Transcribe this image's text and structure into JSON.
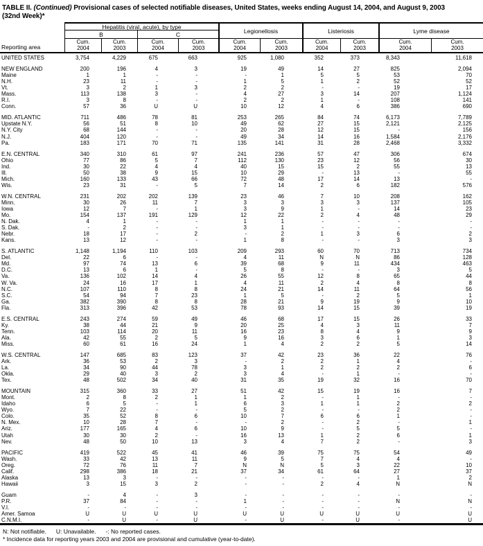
{
  "title": {
    "part1": "TABLE II.",
    "continued": "(Continued)",
    "part2": "Provisional cases of selected notifiable diseases, United States, weeks ending August 14, 2004, and August 9, 2003",
    "line2": "(32nd Week)*"
  },
  "table": {
    "header": {
      "reporting_area": "Reporting area",
      "hepatitis_group": "Hepatitis (viral, acute), by type",
      "hep_b": "B",
      "hep_c": "C",
      "legionellosis": "Legionellosis",
      "listeriosis": "Listeriosis",
      "lyme_disease": "Lyme disease"
    },
    "columns": [
      {
        "id": "hep-b-cum-2004",
        "line1": "Cum.",
        "line2": "2004"
      },
      {
        "id": "hep-b-cum-2003",
        "line1": "Cum.",
        "line2": "2003"
      },
      {
        "id": "hep-c-cum-2004",
        "line1": "Cum.",
        "line2": "2004"
      },
      {
        "id": "hep-c-cum-2003",
        "line1": "Cum.",
        "line2": "2003"
      },
      {
        "id": "legionellosis-cum-2004",
        "line1": "Cum.",
        "line2": "2004"
      },
      {
        "id": "legionellosis-cum-2003",
        "line1": "Cum.",
        "line2": "2003"
      },
      {
        "id": "listeriosis-cum-2004",
        "line1": "Cum.",
        "line2": "2004"
      },
      {
        "id": "listeriosis-cum-2003",
        "line1": "Cum.",
        "line2": "2003"
      },
      {
        "id": "lyme-cum-2004",
        "line1": "Cum.",
        "line2": "2004"
      },
      {
        "id": "lyme-cum-2003",
        "line1": "Cum.",
        "line2": "2003"
      }
    ],
    "groups": [
      {
        "rows": [
          [
            "UNITED STATES",
            "3,754",
            "4,229",
            "675",
            "663",
            "925",
            "1,080",
            "352",
            "373",
            "8,343",
            "11,618"
          ]
        ]
      },
      {
        "rows": [
          [
            "NEW ENGLAND",
            "200",
            "196",
            "4",
            "3",
            "19",
            "49",
            "14",
            "27",
            "825",
            "2,094"
          ],
          [
            "Maine",
            "1",
            "1",
            "-",
            "-",
            "-",
            "1",
            "5",
            "5",
            "53",
            "70"
          ],
          [
            "N.H.",
            "23",
            "11",
            "-",
            "-",
            "1",
            "5",
            "1",
            "2",
            "52",
            "52"
          ],
          [
            "Vt.",
            "3",
            "2",
            "1",
            "3",
            "2",
            "2",
            "-",
            "-",
            "19",
            "17"
          ],
          [
            "Mass.",
            "113",
            "138",
            "3",
            "-",
            "4",
            "27",
            "3",
            "14",
            "207",
            "1,124"
          ],
          [
            "R.I.",
            "3",
            "8",
            "-",
            "-",
            "2",
            "2",
            "1",
            "-",
            "108",
            "141"
          ],
          [
            "Conn.",
            "57",
            "36",
            "U",
            "U",
            "10",
            "12",
            "4",
            "6",
            "386",
            "690"
          ]
        ]
      },
      {
        "rows": [
          [
            "MID. ATLANTIC",
            "711",
            "486",
            "78",
            "81",
            "253",
            "265",
            "84",
            "74",
            "6,173",
            "7,789"
          ],
          [
            "Upstate N.Y.",
            "56",
            "51",
            "8",
            "10",
            "49",
            "62",
            "27",
            "15",
            "2,121",
            "2,125"
          ],
          [
            "N.Y. City",
            "68",
            "144",
            "-",
            "-",
            "20",
            "28",
            "12",
            "15",
            "-",
            "156"
          ],
          [
            "N.J.",
            "404",
            "120",
            "-",
            "-",
            "49",
            "34",
            "14",
            "16",
            "1,584",
            "2,176"
          ],
          [
            "Pa.",
            "183",
            "171",
            "70",
            "71",
            "135",
            "141",
            "31",
            "28",
            "2,468",
            "3,332"
          ]
        ]
      },
      {
        "rows": [
          [
            "E.N. CENTRAL",
            "340",
            "310",
            "61",
            "97",
            "241",
            "236",
            "57",
            "47",
            "306",
            "674"
          ],
          [
            "Ohio",
            "77",
            "86",
            "5",
            "7",
            "112",
            "130",
            "23",
            "12",
            "56",
            "30"
          ],
          [
            "Ind.",
            "30",
            "22",
            "4",
            "4",
            "40",
            "15",
            "15",
            "2",
            "55",
            "13"
          ],
          [
            "Ill.",
            "50",
            "38",
            "9",
            "15",
            "10",
            "29",
            "-",
            "13",
            "-",
            "55"
          ],
          [
            "Mich.",
            "160",
            "133",
            "43",
            "66",
            "72",
            "48",
            "17",
            "14",
            "13",
            "-"
          ],
          [
            "Wis.",
            "23",
            "31",
            "-",
            "5",
            "7",
            "14",
            "2",
            "6",
            "182",
            "576"
          ]
        ]
      },
      {
        "rows": [
          [
            "W.N. CENTRAL",
            "231",
            "202",
            "202",
            "139",
            "23",
            "46",
            "7",
            "10",
            "208",
            "162"
          ],
          [
            "Minn.",
            "30",
            "26",
            "11",
            "7",
            "3",
            "3",
            "3",
            "3",
            "137",
            "105"
          ],
          [
            "Iowa",
            "12",
            "7",
            "-",
            "1",
            "3",
            "9",
            "1",
            "-",
            "14",
            "23"
          ],
          [
            "Mo.",
            "154",
            "137",
            "191",
            "129",
            "12",
            "22",
            "2",
            "4",
            "48",
            "29"
          ],
          [
            "N. Dak.",
            "4",
            "1",
            "-",
            "-",
            "1",
            "1",
            "-",
            "-",
            "-",
            "-"
          ],
          [
            "S. Dak.",
            "-",
            "2",
            "-",
            "-",
            "3",
            "1",
            "-",
            "-",
            "-",
            "-"
          ],
          [
            "Nebr.",
            "18",
            "17",
            "-",
            "2",
            "-",
            "2",
            "1",
            "3",
            "6",
            "2"
          ],
          [
            "Kans.",
            "13",
            "12",
            "-",
            "-",
            "1",
            "8",
            "-",
            "-",
            "3",
            "3"
          ]
        ]
      },
      {
        "rows": [
          [
            "S. ATLANTIC",
            "1,148",
            "1,194",
            "110",
            "103",
            "209",
            "293",
            "60",
            "70",
            "713",
            "734"
          ],
          [
            "Del.",
            "22",
            "6",
            "-",
            "-",
            "4",
            "11",
            "N",
            "N",
            "86",
            "128"
          ],
          [
            "Md.",
            "97",
            "74",
            "13",
            "6",
            "39",
            "68",
            "9",
            "11",
            "434",
            "463"
          ],
          [
            "D.C.",
            "13",
            "6",
            "1",
            "-",
            "5",
            "8",
            "-",
            "-",
            "3",
            "5"
          ],
          [
            "Va.",
            "136",
            "102",
            "14",
            "4",
            "26",
            "55",
            "12",
            "8",
            "65",
            "44"
          ],
          [
            "W. Va.",
            "24",
            "16",
            "17",
            "1",
            "4",
            "11",
            "2",
            "4",
            "8",
            "8"
          ],
          [
            "N.C.",
            "107",
            "110",
            "8",
            "8",
            "24",
            "21",
            "14",
            "11",
            "64",
            "56"
          ],
          [
            "S.C.",
            "54",
            "94",
            "7",
            "23",
            "1",
            "5",
            "-",
            "2",
            "5",
            "1"
          ],
          [
            "Ga.",
            "382",
            "390",
            "8",
            "8",
            "28",
            "21",
            "9",
            "19",
            "9",
            "10"
          ],
          [
            "Fla.",
            "313",
            "396",
            "42",
            "53",
            "78",
            "93",
            "14",
            "15",
            "39",
            "19"
          ]
        ]
      },
      {
        "rows": [
          [
            "E.S. CENTRAL",
            "243",
            "274",
            "59",
            "49",
            "46",
            "68",
            "17",
            "15",
            "26",
            "33"
          ],
          [
            "Ky.",
            "38",
            "44",
            "21",
            "9",
            "20",
            "25",
            "4",
            "3",
            "11",
            "7"
          ],
          [
            "Tenn.",
            "103",
            "114",
            "20",
            "11",
            "16",
            "23",
            "8",
            "4",
            "9",
            "9"
          ],
          [
            "Ala.",
            "42",
            "55",
            "2",
            "5",
            "9",
            "16",
            "3",
            "6",
            "1",
            "3"
          ],
          [
            "Miss.",
            "60",
            "61",
            "16",
            "24",
            "1",
            "4",
            "2",
            "2",
            "5",
            "14"
          ]
        ]
      },
      {
        "rows": [
          [
            "W.S. CENTRAL",
            "147",
            "685",
            "83",
            "123",
            "37",
            "42",
            "23",
            "36",
            "22",
            "76"
          ],
          [
            "Ark.",
            "36",
            "53",
            "2",
            "3",
            "-",
            "2",
            "2",
            "1",
            "4",
            "-"
          ],
          [
            "La.",
            "34",
            "90",
            "44",
            "78",
            "3",
            "1",
            "2",
            "2",
            "2",
            "6"
          ],
          [
            "Okla.",
            "29",
            "40",
            "3",
            "2",
            "3",
            "4",
            "-",
            "1",
            "-",
            "-"
          ],
          [
            "Tex.",
            "48",
            "502",
            "34",
            "40",
            "31",
            "35",
            "19",
            "32",
            "16",
            "70"
          ]
        ]
      },
      {
        "rows": [
          [
            "MOUNTAIN",
            "315",
            "360",
            "33",
            "27",
            "51",
            "42",
            "15",
            "19",
            "16",
            "7"
          ],
          [
            "Mont.",
            "2",
            "8",
            "2",
            "1",
            "1",
            "2",
            "-",
            "1",
            "-",
            "-"
          ],
          [
            "Idaho",
            "6",
            "5",
            "-",
            "1",
            "6",
            "3",
            "1",
            "1",
            "2",
            "2"
          ],
          [
            "Wyo.",
            "7",
            "22",
            "-",
            "-",
            "5",
            "2",
            "-",
            "-",
            "2",
            "-"
          ],
          [
            "Colo.",
            "35",
            "52",
            "8",
            "6",
            "10",
            "7",
            "6",
            "6",
            "1",
            "-"
          ],
          [
            "N. Mex.",
            "10",
            "28",
            "7",
            "-",
            "-",
            "2",
            "-",
            "2",
            "-",
            "1"
          ],
          [
            "Ariz.",
            "177",
            "165",
            "4",
            "6",
            "10",
            "9",
            "-",
            "5",
            "5",
            "-"
          ],
          [
            "Utah",
            "30",
            "30",
            "2",
            "-",
            "16",
            "13",
            "1",
            "2",
            "6",
            "1"
          ],
          [
            "Nev.",
            "48",
            "50",
            "10",
            "13",
            "3",
            "4",
            "7",
            "2",
            "-",
            "3"
          ]
        ]
      },
      {
        "rows": [
          [
            "PACIFIC",
            "419",
            "522",
            "45",
            "41",
            "46",
            "39",
            "75",
            "75",
            "54",
            "49"
          ],
          [
            "Wash.",
            "33",
            "42",
            "13",
            "11",
            "9",
            "5",
            "7",
            "4",
            "4",
            "-"
          ],
          [
            "Oreg.",
            "72",
            "76",
            "11",
            "7",
            "N",
            "N",
            "5",
            "3",
            "22",
            "10"
          ],
          [
            "Calif.",
            "298",
            "386",
            "18",
            "21",
            "37",
            "34",
            "61",
            "64",
            "27",
            "37"
          ],
          [
            "Alaska",
            "13",
            "3",
            "-",
            "-",
            "-",
            "-",
            "-",
            "-",
            "1",
            "2"
          ],
          [
            "Hawaii",
            "3",
            "15",
            "3",
            "2",
            "-",
            "-",
            "2",
            "4",
            "N",
            "N"
          ]
        ]
      },
      {
        "rows": [
          [
            "Guam",
            "-",
            "4",
            "-",
            "3",
            "-",
            "-",
            "-",
            "-",
            "-",
            "-"
          ],
          [
            "P.R.",
            "37",
            "84",
            "-",
            "-",
            "1",
            "-",
            "-",
            "-",
            "N",
            "N"
          ],
          [
            "V.I.",
            "-",
            "-",
            "-",
            "-",
            "-",
            "-",
            "-",
            "-",
            "-",
            "-"
          ],
          [
            "Amer. Samoa",
            "U",
            "U",
            "U",
            "U",
            "U",
            "U",
            "U",
            "U",
            "U",
            "U"
          ],
          [
            "C.N.M.I.",
            "-",
            "U",
            "-",
            "U",
            "-",
            "U",
            "-",
            "U",
            "-",
            "U"
          ]
        ]
      }
    ]
  },
  "footnotes": {
    "legend_n": "N: Not notifiable.",
    "legend_u": "U: Unavailable.",
    "legend_dash": "-: No reported cases.",
    "note": "* Incidence data for reporting years 2003 and 2004 are provisional and cumulative (year-to-date)."
  }
}
